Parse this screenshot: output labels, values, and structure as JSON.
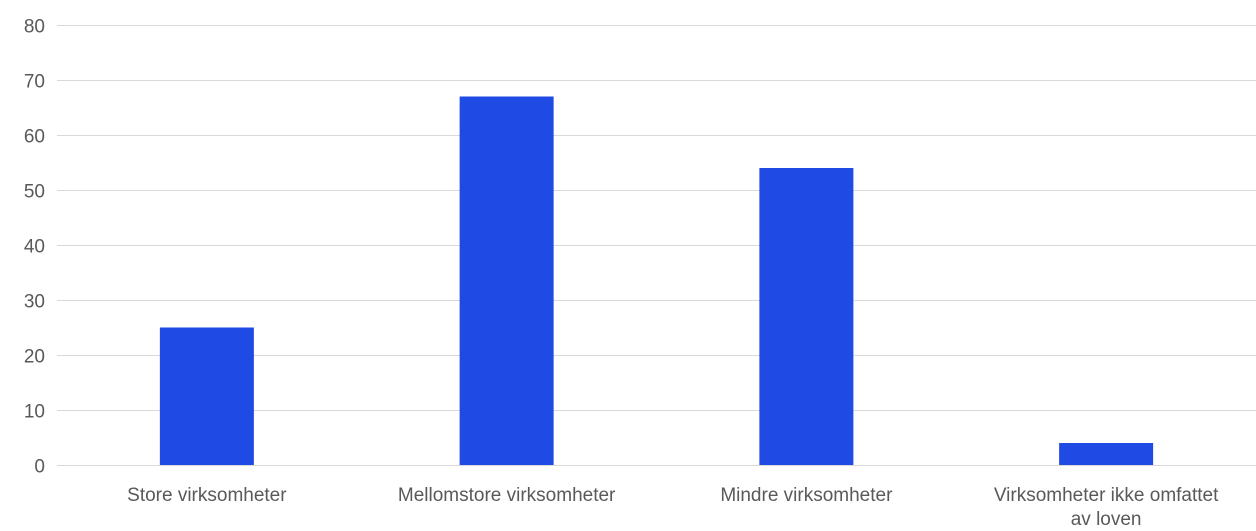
{
  "chart_data": {
    "type": "bar",
    "title": "",
    "xlabel": "",
    "ylabel": "",
    "categories": [
      "Store virksomheter",
      "Mellomstore virksomheter",
      "Mindre virksomheter",
      "Virksomheter ikke omfattet av loven"
    ],
    "category_label_lines": [
      [
        "Store virksomheter"
      ],
      [
        "Mellomstore virksomheter"
      ],
      [
        "Mindre virksomheter"
      ],
      [
        "Virksomheter ikke omfattet",
        "av loven"
      ]
    ],
    "values": [
      25,
      67,
      54,
      4
    ],
    "ylim": [
      0,
      80
    ],
    "yticks": [
      0,
      10,
      20,
      30,
      40,
      50,
      60,
      70,
      80
    ],
    "grid": true,
    "legend": "none",
    "bar_color": "#1f4ae3"
  }
}
